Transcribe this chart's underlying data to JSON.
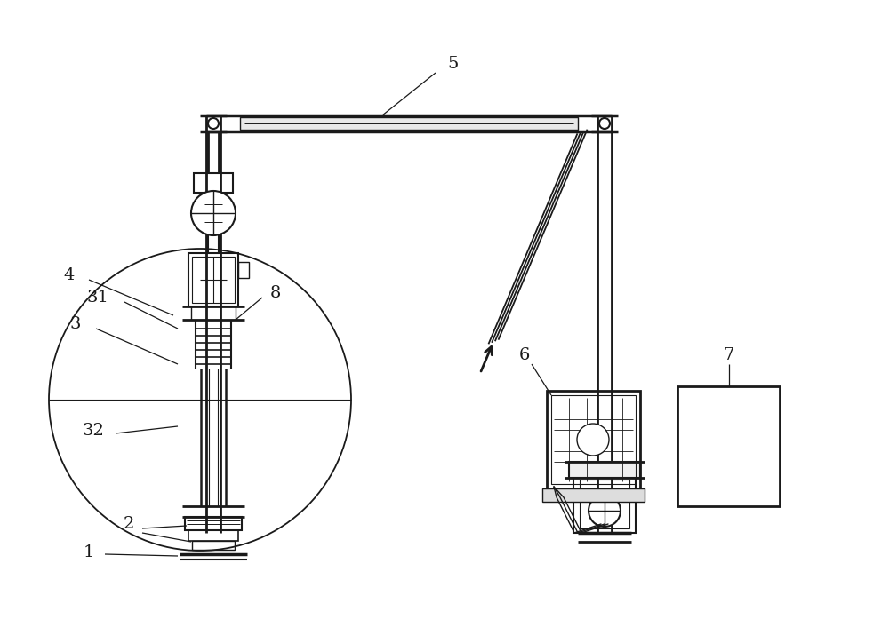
{
  "bg_color": "#ffffff",
  "line_color": "#1a1a1a",
  "fig_width": 10.0,
  "fig_height": 7.24,
  "dpi": 100
}
